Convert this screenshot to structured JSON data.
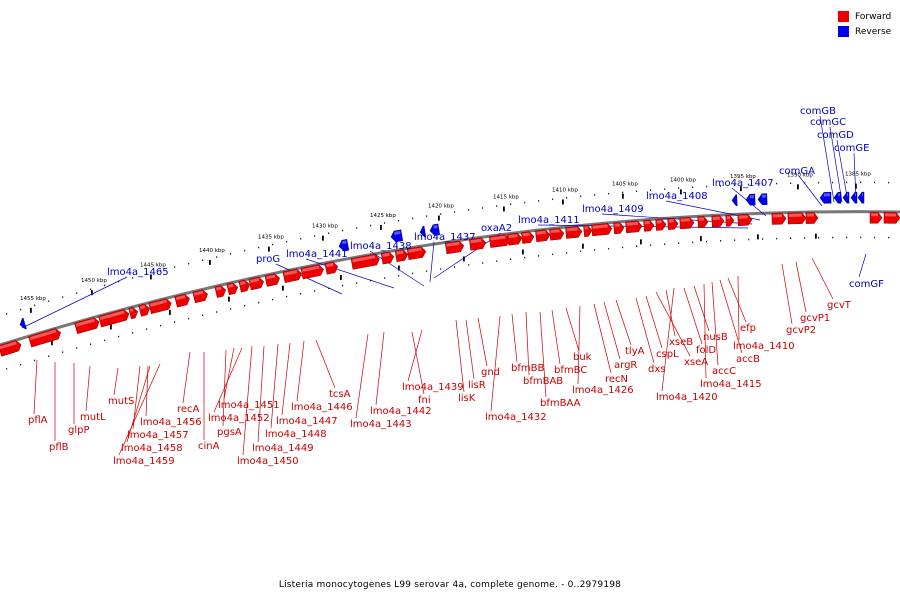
{
  "legend": {
    "forward_label": "Forward",
    "reverse_label": "Reverse",
    "forward_color": "#ee0000",
    "reverse_color": "#0000ee"
  },
  "caption": "Listeria monocytogenes L99 serovar 4a, complete genome. - 0..2979198",
  "ticks": [
    "1455 kbp",
    "1450 kbp",
    "1445 kbp",
    "1440 kbp",
    "1435 kbp",
    "1430 kbp",
    "1425 kbp",
    "1420 kbp",
    "1415 kbp",
    "1410 kbp",
    "1405 kbp",
    "1400 kbp",
    "1395 kbp",
    "1390 kbp",
    "1385 kbp"
  ],
  "forward_labels": [
    "pflA",
    "pflB",
    "glpP",
    "mutL",
    "mutS",
    "lmo4a_1456",
    "lmo4a_1457",
    "lmo4a_1458",
    "lmo4a_1459",
    "recA",
    "cinA",
    "pgsA",
    "lmo4a_1451",
    "lmo4a_1452",
    "lmo4a_1450",
    "lmo4a_1449",
    "lmo4a_1448",
    "lmo4a_1447",
    "lmo4a_1446",
    "tcsA",
    "lmo4a_1443",
    "lmo4a_1442",
    "fni",
    "lmo4a_1439",
    "lisK",
    "lisR",
    "gnd",
    "lmo4a_1432",
    "bfmBB",
    "bfmBAB",
    "bfmBAA",
    "bfmBC",
    "buk",
    "lmo4a_1426",
    "recN",
    "argR",
    "tlyA",
    "dxs",
    "cspL",
    "xseA",
    "xseB",
    "lmo4a_1420",
    "folD",
    "nusB",
    "lmo4a_1415",
    "accC",
    "accB",
    "efp",
    "lmo4a_1410",
    "gcvP2",
    "gcvP1",
    "gcvT"
  ],
  "reverse_labels": [
    "lmo4a_1465",
    "proG",
    "lmo4a_1441",
    "lmo4a_1438",
    "lmo4a_1437",
    "oxaA2",
    "lmo4a_1411",
    "lmo4a_1409",
    "lmo4a_1408",
    "lmo4a_1407",
    "comGA",
    "comGB",
    "comGC",
    "comGD",
    "comGE",
    "comGF"
  ]
}
